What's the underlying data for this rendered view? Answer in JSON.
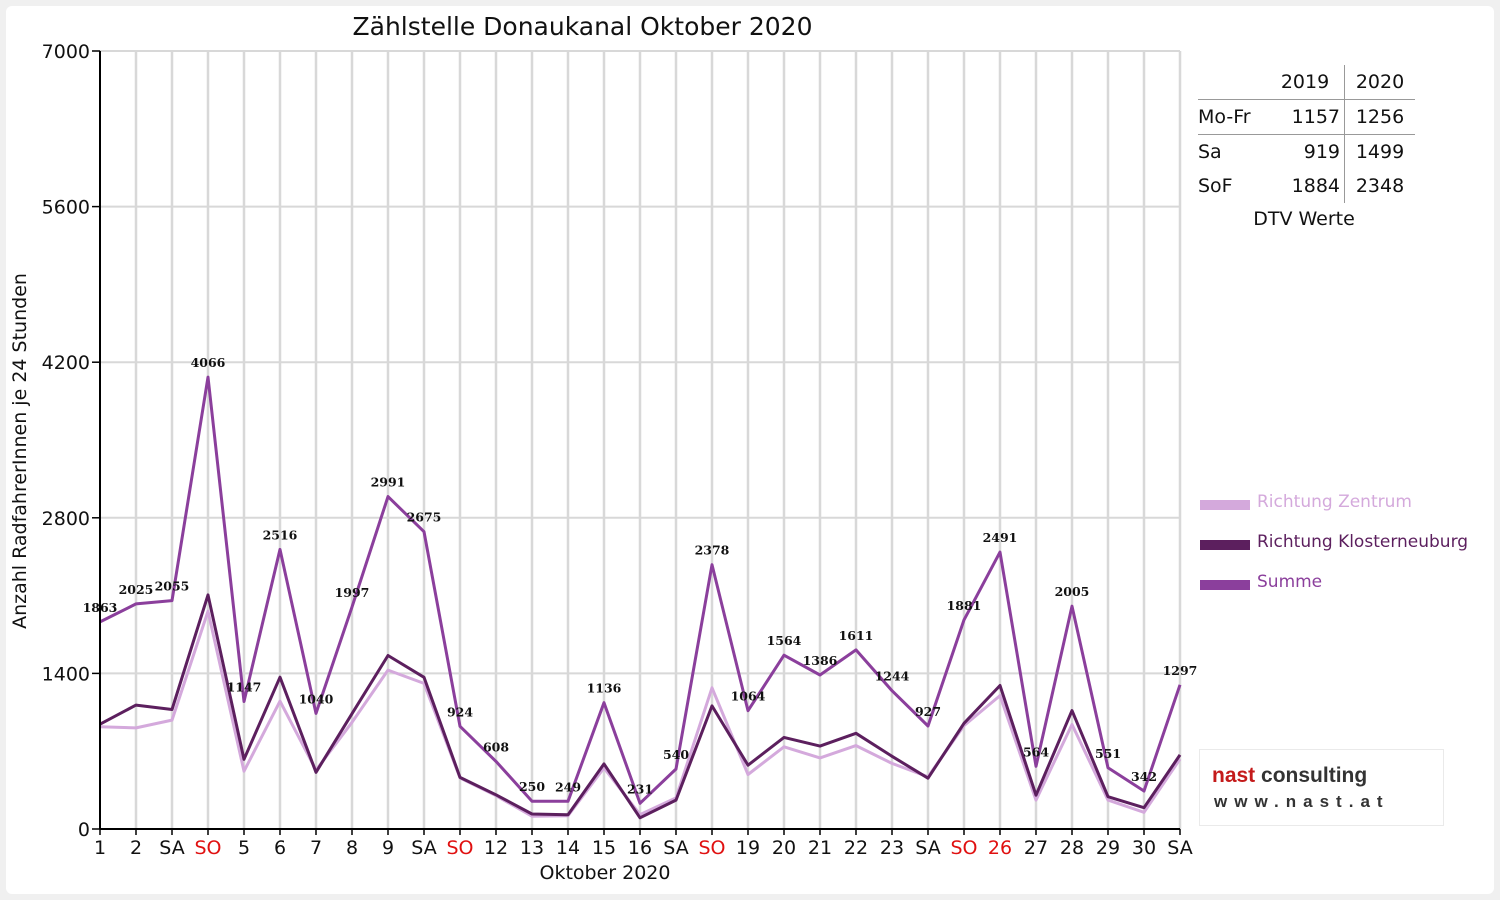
{
  "title": "Zählstelle Donaukanal Oktober 2020",
  "xlabel": "Oktober 2020",
  "ylabel": "Anzahl RadfahrerInnen je 24 Stunden",
  "dtv": {
    "caption": "DTV Werte",
    "headers": [
      "",
      "2019",
      "2020"
    ],
    "rows": [
      {
        "label": "Mo-Fr",
        "v2019": "1157",
        "v2020": "1256"
      },
      {
        "label": "Sa",
        "v2019": "919",
        "v2020": "1499"
      },
      {
        "label": "SoF",
        "v2019": "1884",
        "v2020": "2348"
      }
    ]
  },
  "logo": {
    "brand": "nast",
    "brand_suffix": " consulting",
    "url": "www.nast.at",
    "brand_color": "#c41a1a",
    "text_color": "#333333"
  },
  "chart_data": {
    "type": "line",
    "title": "Zählstelle Donaukanal Oktober 2020",
    "xlabel": "Oktober 2020",
    "ylabel": "Anzahl RadfahrerInnen je 24 Stunden",
    "ylim": [
      0,
      7000
    ],
    "yticks": [
      0,
      1400,
      2800,
      4200,
      5600,
      7000
    ],
    "grid": true,
    "legend_position": "right",
    "categories": [
      "1",
      "2",
      "SA",
      "SO",
      "5",
      "6",
      "7",
      "8",
      "9",
      "SA",
      "SO",
      "12",
      "13",
      "14",
      "15",
      "16",
      "SA",
      "SO",
      "19",
      "20",
      "21",
      "22",
      "23",
      "SA",
      "SO",
      "26",
      "27",
      "28",
      "29",
      "30",
      "SA"
    ],
    "red_categories": [
      3,
      10,
      17,
      24,
      25
    ],
    "series": [
      {
        "name": "Richtung Zentrum",
        "color": "#d4a9dc",
        "values": [
          920,
          910,
          980,
          1960,
          520,
          1150,
          530,
          960,
          1430,
          1310,
          460,
          300,
          115,
          120,
          550,
          130,
          280,
          1270,
          490,
          740,
          640,
          750,
          590,
          470,
          930,
          1200,
          260,
          940,
          260,
          150,
          630
        ]
      },
      {
        "name": "Richtung Klosterneuburg",
        "color": "#5c1f5e",
        "values": [
          943,
          1115,
          1075,
          2106,
          627,
          1366,
          510,
          1037,
          1561,
          1365,
          464,
          308,
          135,
          129,
          586,
          101,
          260,
          1108,
          574,
          824,
          746,
          861,
          654,
          457,
          951,
          1291,
          304,
          1065,
          291,
          192,
          667
        ]
      },
      {
        "name": "Summe",
        "color": "#8b3f9c",
        "values": [
          1863,
          2025,
          2055,
          4066,
          1147,
          2516,
          1040,
          1997,
          2991,
          2675,
          924,
          608,
          250,
          249,
          1136,
          231,
          540,
          2378,
          1064,
          1564,
          1386,
          1611,
          1244,
          927,
          1881,
          2491,
          564,
          2005,
          551,
          342,
          1297
        ]
      }
    ],
    "data_labels": {
      "series": "Summe",
      "values": [
        "1863",
        "2025",
        "2055",
        "4066",
        "1147",
        "2516",
        "1040",
        "1997",
        "2991",
        "2675",
        "924",
        "608",
        "250",
        "249",
        "1136",
        "231",
        "540",
        "2378",
        "1064",
        "1564",
        "1386",
        "1611",
        "1244",
        "927",
        "1881",
        "2491",
        "564",
        "2005",
        "551",
        "342",
        "1297"
      ]
    }
  }
}
